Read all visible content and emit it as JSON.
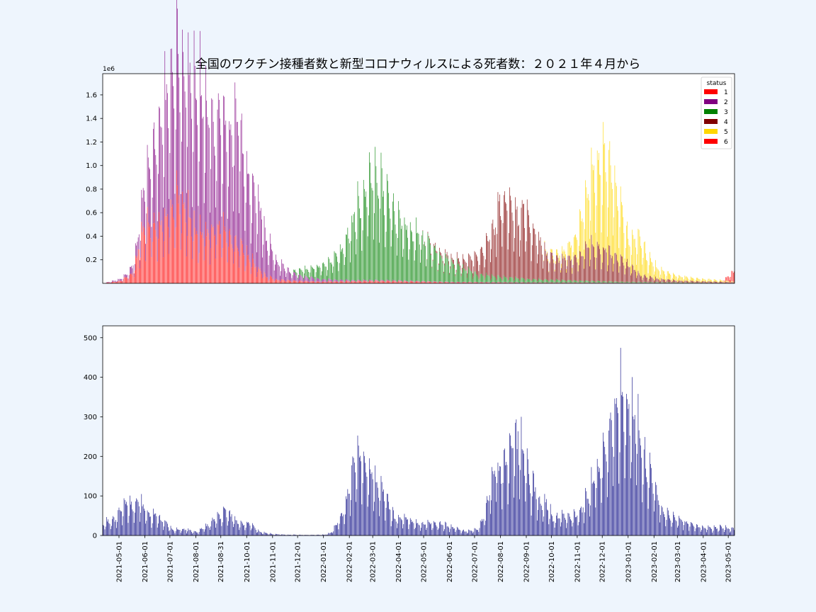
{
  "title": "全国のワクチン接種者数と新型コロナウィルスによる死者数：２０２１年４月から",
  "chart_data": [
    {
      "type": "bar",
      "stacked": true,
      "scale_note": "1e6",
      "ylim": [
        0,
        1780000
      ],
      "yticks": [
        0.2,
        0.4,
        0.6,
        0.8,
        1.0,
        1.2,
        1.4,
        1.6
      ],
      "yticklabels": [
        "0.2",
        "0.4",
        "0.6",
        "0.8",
        "1.0",
        "1.2",
        "1.4",
        "1.6"
      ],
      "legend": {
        "title": "status",
        "placement": "top-right"
      },
      "x_range": [
        "2021-04-12",
        "2023-05-08"
      ],
      "series": [
        {
          "name": "1",
          "color": "#ff0000",
          "weekly_peaks": [
            [
              "2021-04-12",
              0
            ],
            [
              "2021-05-03",
              30000
            ],
            [
              "2021-05-17",
              120000
            ],
            [
              "2021-05-24",
              380000
            ],
            [
              "2021-05-31",
              650000
            ],
            [
              "2021-06-14",
              680000
            ],
            [
              "2021-06-28",
              800000
            ],
            [
              "2021-07-12",
              1020000
            ],
            [
              "2021-07-19",
              900000
            ],
            [
              "2021-08-02",
              600000
            ],
            [
              "2021-08-16",
              560000
            ],
            [
              "2021-08-30",
              640000
            ],
            [
              "2021-09-13",
              560000
            ],
            [
              "2021-09-27",
              380000
            ],
            [
              "2021-10-11",
              220000
            ],
            [
              "2021-10-25",
              80000
            ],
            [
              "2021-11-08",
              40000
            ],
            [
              "2021-11-29",
              30000
            ],
            [
              "2021-12-27",
              20000
            ],
            [
              "2022-03-07",
              30000
            ],
            [
              "2022-06-06",
              12000
            ],
            [
              "2022-09-05",
              8000
            ],
            [
              "2022-12-05",
              6000
            ],
            [
              "2023-03-06",
              3000
            ],
            [
              "2023-05-08",
              2000
            ]
          ]
        },
        {
          "name": "2",
          "color": "#800080",
          "weekly_peaks": [
            [
              "2021-04-12",
              0
            ],
            [
              "2021-05-10",
              30000
            ],
            [
              "2021-05-24",
              160000
            ],
            [
              "2021-06-07",
              700000
            ],
            [
              "2021-06-21",
              1200000
            ],
            [
              "2021-06-28",
              1450000
            ],
            [
              "2021-07-05",
              1700000
            ],
            [
              "2021-07-19",
              1550000
            ],
            [
              "2021-08-02",
              1630000
            ],
            [
              "2021-08-09",
              1520000
            ],
            [
              "2021-08-23",
              1250000
            ],
            [
              "2021-08-30",
              1280000
            ],
            [
              "2021-09-13",
              1200000
            ],
            [
              "2021-09-20",
              1540000
            ],
            [
              "2021-09-27",
              1080000
            ],
            [
              "2021-10-04",
              930000
            ],
            [
              "2021-10-18",
              700000
            ],
            [
              "2021-10-25",
              430000
            ],
            [
              "2021-11-08",
              200000
            ],
            [
              "2021-11-22",
              100000
            ],
            [
              "2021-12-06",
              60000
            ],
            [
              "2021-12-27",
              30000
            ],
            [
              "2022-02-07",
              10000
            ],
            [
              "2022-06-06",
              4000
            ],
            [
              "2023-05-08",
              1000
            ]
          ]
        },
        {
          "name": "3",
          "color": "#008000",
          "weekly_peaks": [
            [
              "2021-11-22",
              0
            ],
            [
              "2021-12-06",
              70000
            ],
            [
              "2021-12-20",
              120000
            ],
            [
              "2022-01-10",
              200000
            ],
            [
              "2022-01-24",
              360000
            ],
            [
              "2022-01-31",
              560000
            ],
            [
              "2022-02-07",
              760000
            ],
            [
              "2022-02-14",
              900000
            ],
            [
              "2022-02-21",
              1100000
            ],
            [
              "2022-02-28",
              1180000
            ],
            [
              "2022-03-07",
              1220000
            ],
            [
              "2022-03-14",
              1000000
            ],
            [
              "2022-03-21",
              900000
            ],
            [
              "2022-03-28",
              780000
            ],
            [
              "2022-04-11",
              620000
            ],
            [
              "2022-04-25",
              520000
            ],
            [
              "2022-05-09",
              420000
            ],
            [
              "2022-05-23",
              300000
            ],
            [
              "2022-06-06",
              220000
            ],
            [
              "2022-06-20",
              150000
            ],
            [
              "2022-07-04",
              90000
            ],
            [
              "2022-08-01",
              60000
            ],
            [
              "2022-09-05",
              40000
            ],
            [
              "2022-10-03",
              30000
            ],
            [
              "2022-11-07",
              20000
            ],
            [
              "2023-01-02",
              10000
            ],
            [
              "2023-05-08",
              0
            ]
          ]
        },
        {
          "name": "4",
          "color": "#800000",
          "weekly_peaks": [
            [
              "2022-04-25",
              0
            ],
            [
              "2022-06-13",
              60000
            ],
            [
              "2022-06-27",
              150000
            ],
            [
              "2022-07-11",
              300000
            ],
            [
              "2022-07-18",
              440000
            ],
            [
              "2022-07-25",
              600000
            ],
            [
              "2022-08-01",
              880000
            ],
            [
              "2022-08-08",
              900000
            ],
            [
              "2022-08-15",
              820000
            ],
            [
              "2022-08-22",
              700000
            ],
            [
              "2022-08-29",
              820000
            ],
            [
              "2022-09-05",
              680000
            ],
            [
              "2022-09-12",
              520000
            ],
            [
              "2022-09-26",
              300000
            ],
            [
              "2022-10-10",
              250000
            ],
            [
              "2022-10-24",
              260000
            ],
            [
              "2022-11-07",
              300000
            ],
            [
              "2022-11-14",
              420000
            ],
            [
              "2022-11-21",
              380000
            ],
            [
              "2022-12-05",
              360000
            ],
            [
              "2022-12-19",
              300000
            ],
            [
              "2023-01-02",
              200000
            ],
            [
              "2023-01-16",
              80000
            ],
            [
              "2023-02-06",
              40000
            ],
            [
              "2023-03-06",
              20000
            ],
            [
              "2023-05-08",
              10000
            ]
          ]
        },
        {
          "name": "5",
          "color": "#ffd700",
          "weekly_peaks": [
            [
              "2022-09-19",
              0
            ],
            [
              "2022-10-17",
              80000
            ],
            [
              "2022-10-31",
              250000
            ],
            [
              "2022-11-07",
              450000
            ],
            [
              "2022-11-14",
              680000
            ],
            [
              "2022-11-21",
              900000
            ],
            [
              "2022-11-28",
              1050000
            ],
            [
              "2022-12-05",
              1080000
            ],
            [
              "2022-12-12",
              1050000
            ],
            [
              "2022-12-19",
              680000
            ],
            [
              "2022-12-26",
              520000
            ],
            [
              "2023-01-02",
              280000
            ],
            [
              "2023-01-16",
              440000
            ],
            [
              "2023-01-23",
              250000
            ],
            [
              "2023-02-06",
              110000
            ],
            [
              "2023-02-20",
              70000
            ],
            [
              "2023-03-06",
              50000
            ],
            [
              "2023-03-27",
              30000
            ],
            [
              "2023-04-17",
              20000
            ],
            [
              "2023-05-08",
              5000
            ]
          ]
        },
        {
          "name": "6",
          "color": "#ff0000",
          "weekly_peaks": [
            [
              "2023-04-24",
              0
            ],
            [
              "2023-05-08",
              120000
            ]
          ]
        }
      ]
    },
    {
      "type": "bar",
      "ylim": [
        0,
        530
      ],
      "yticks": [
        0,
        100,
        200,
        300,
        400,
        500
      ],
      "yticklabels": [
        "0",
        "100",
        "200",
        "300",
        "400",
        "500"
      ],
      "x_range": [
        "2021-04-12",
        "2023-05-08"
      ],
      "xticks": [
        "2021-05-01",
        "2021-06-01",
        "2021-07-01",
        "2021-08-01",
        "2021-08-31",
        "2021-10-01",
        "2021-11-01",
        "2021-12-01",
        "2022-01-01",
        "2022-02-01",
        "2022-03-01",
        "2022-04-01",
        "2022-05-01",
        "2022-06-01",
        "2022-07-01",
        "2022-08-01",
        "2022-09-01",
        "2022-10-01",
        "2022-11-01",
        "2022-12-01",
        "2023-01-01",
        "2023-02-01",
        "2023-03-01",
        "2023-04-01",
        "2023-05-01"
      ],
      "series": [
        {
          "name": "",
          "color": "#000080",
          "weekly_peaks": [
            [
              "2021-04-12",
              45
            ],
            [
              "2021-04-26",
              55
            ],
            [
              "2021-05-10",
              120
            ],
            [
              "2021-05-17",
              110
            ],
            [
              "2021-05-24",
              112
            ],
            [
              "2021-05-31",
              100
            ],
            [
              "2021-06-07",
              70
            ],
            [
              "2021-06-14",
              75
            ],
            [
              "2021-06-21",
              55
            ],
            [
              "2021-06-28",
              40
            ],
            [
              "2021-07-05",
              20
            ],
            [
              "2021-07-19",
              22
            ],
            [
              "2021-08-02",
              12
            ],
            [
              "2021-08-09",
              25
            ],
            [
              "2021-08-16",
              35
            ],
            [
              "2021-08-23",
              55
            ],
            [
              "2021-08-30",
              70
            ],
            [
              "2021-09-06",
              85
            ],
            [
              "2021-09-13",
              70
            ],
            [
              "2021-09-20",
              45
            ],
            [
              "2021-09-27",
              40
            ],
            [
              "2021-10-04",
              45
            ],
            [
              "2021-10-11",
              25
            ],
            [
              "2021-10-18",
              12
            ],
            [
              "2021-11-01",
              5
            ],
            [
              "2021-11-15",
              3
            ],
            [
              "2021-12-13",
              2
            ],
            [
              "2022-01-03",
              3
            ],
            [
              "2022-01-10",
              10
            ],
            [
              "2022-01-17",
              40
            ],
            [
              "2022-01-24",
              80
            ],
            [
              "2022-01-31",
              150
            ],
            [
              "2022-02-07",
              245
            ],
            [
              "2022-02-14",
              275
            ],
            [
              "2022-02-21",
              235
            ],
            [
              "2022-02-28",
              230
            ],
            [
              "2022-03-07",
              170
            ],
            [
              "2022-03-14",
              160
            ],
            [
              "2022-03-21",
              100
            ],
            [
              "2022-03-28",
              60
            ],
            [
              "2022-04-11",
              60
            ],
            [
              "2022-04-25",
              40
            ],
            [
              "2022-05-09",
              45
            ],
            [
              "2022-05-23",
              40
            ],
            [
              "2022-06-06",
              28
            ],
            [
              "2022-06-20",
              15
            ],
            [
              "2022-07-04",
              20
            ],
            [
              "2022-07-11",
              55
            ],
            [
              "2022-07-18",
              130
            ],
            [
              "2022-07-25",
              250
            ],
            [
              "2022-08-01",
              230
            ],
            [
              "2022-08-08",
              280
            ],
            [
              "2022-08-15",
              320
            ],
            [
              "2022-08-22",
              345
            ],
            [
              "2022-08-29",
              280
            ],
            [
              "2022-09-05",
              200
            ],
            [
              "2022-09-12",
              160
            ],
            [
              "2022-09-19",
              100
            ],
            [
              "2022-09-26",
              110
            ],
            [
              "2022-10-03",
              60
            ],
            [
              "2022-10-17",
              70
            ],
            [
              "2022-10-31",
              70
            ],
            [
              "2022-11-07",
              95
            ],
            [
              "2022-11-14",
              140
            ],
            [
              "2022-11-21",
              210
            ],
            [
              "2022-11-28",
              240
            ],
            [
              "2022-12-05",
              300
            ],
            [
              "2022-12-12",
              380
            ],
            [
              "2022-12-19",
              460
            ],
            [
              "2022-12-26",
              500
            ],
            [
              "2023-01-02",
              450
            ],
            [
              "2023-01-09",
              410
            ],
            [
              "2023-01-16",
              340
            ],
            [
              "2023-01-23",
              250
            ],
            [
              "2023-01-30",
              200
            ],
            [
              "2023-02-06",
              125
            ],
            [
              "2023-02-13",
              80
            ],
            [
              "2023-02-27",
              60
            ],
            [
              "2023-03-13",
              45
            ],
            [
              "2023-03-27",
              30
            ],
            [
              "2023-04-10",
              25
            ],
            [
              "2023-04-24",
              30
            ],
            [
              "2023-05-08",
              22
            ]
          ]
        }
      ]
    }
  ]
}
